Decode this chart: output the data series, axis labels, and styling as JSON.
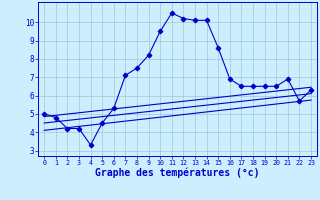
{
  "temperatures": [
    5.0,
    4.8,
    4.2,
    4.2,
    3.3,
    4.5,
    5.3,
    7.1,
    7.5,
    8.2,
    9.5,
    10.5,
    10.2,
    10.1,
    10.1,
    8.6,
    6.9,
    6.5,
    6.5,
    6.5,
    6.5,
    6.9,
    5.7,
    6.3
  ],
  "hours": [
    0,
    1,
    2,
    3,
    4,
    5,
    6,
    7,
    8,
    9,
    10,
    11,
    12,
    13,
    14,
    15,
    16,
    17,
    18,
    19,
    20,
    21,
    22,
    23
  ],
  "reg_line1": {
    "x": [
      0,
      23
    ],
    "y": [
      4.1,
      5.75
    ]
  },
  "reg_line2": {
    "x": [
      0,
      23
    ],
    "y": [
      4.5,
      6.1
    ]
  },
  "reg_line3": {
    "x": [
      0,
      23
    ],
    "y": [
      4.85,
      6.45
    ]
  },
  "line_color": "#0000cc",
  "bg_color": "#cceeff",
  "grid_color": "#99cccc",
  "xlabel": "Graphe des températures (°c)",
  "xlim": [
    -0.5,
    23.5
  ],
  "ylim": [
    2.7,
    11.1
  ],
  "yticks": [
    3,
    4,
    5,
    6,
    7,
    8,
    9,
    10
  ],
  "xticks": [
    0,
    1,
    2,
    3,
    4,
    5,
    6,
    7,
    8,
    9,
    10,
    11,
    12,
    13,
    14,
    15,
    16,
    17,
    18,
    19,
    20,
    21,
    22,
    23
  ]
}
